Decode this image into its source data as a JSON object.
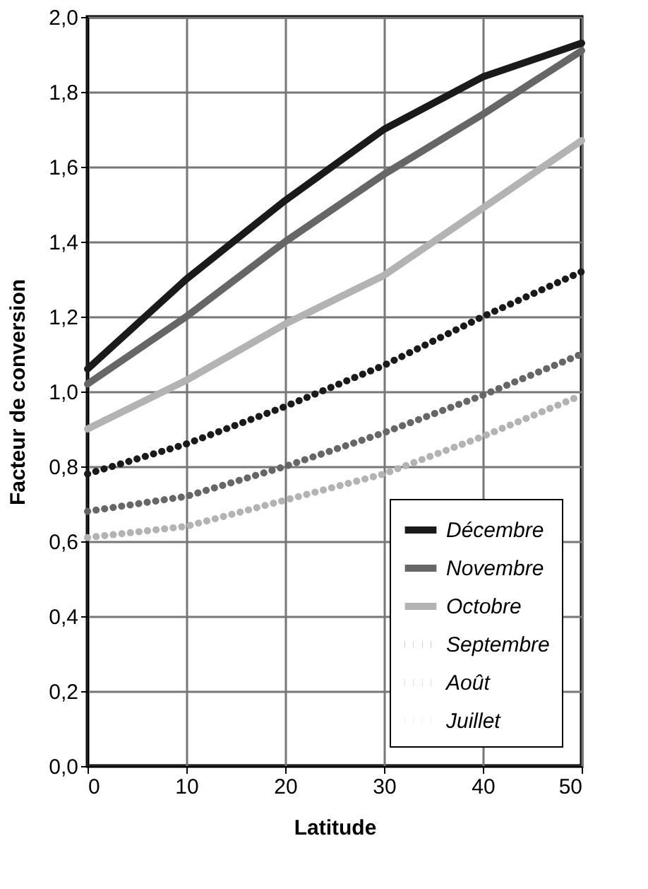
{
  "chart_data": {
    "type": "line",
    "xlabel": "Latitude",
    "ylabel": "Facteur de conversion",
    "x": [
      0,
      10,
      20,
      30,
      40,
      50
    ],
    "xlim": [
      0,
      50
    ],
    "xticks": [
      0,
      10,
      20,
      30,
      40,
      50
    ],
    "ylim": [
      0,
      2
    ],
    "yticks": [
      {
        "value": 0,
        "label": "0,0"
      },
      {
        "value": 0.2,
        "label": "0,2"
      },
      {
        "value": 0.4,
        "label": "0,4"
      },
      {
        "value": 0.6,
        "label": "0,6"
      },
      {
        "value": 0.8,
        "label": "0,8"
      },
      {
        "value": 1.0,
        "label": "1,0"
      },
      {
        "value": 1.2,
        "label": "1,2"
      },
      {
        "value": 1.4,
        "label": "1,4"
      },
      {
        "value": 1.6,
        "label": "1,6"
      },
      {
        "value": 1.8,
        "label": "1,8"
      },
      {
        "value": 2.0,
        "label": "2,0"
      }
    ],
    "grid": true,
    "legend": "bottom right",
    "series": [
      {
        "name": "Décembre",
        "color": "#1a1a1a",
        "line_style": "solid",
        "values": [
          1.06,
          1.3,
          1.51,
          1.7,
          1.84,
          1.93
        ]
      },
      {
        "name": "Novembre",
        "color": "#666666",
        "line_style": "solid",
        "values": [
          1.02,
          1.2,
          1.4,
          1.58,
          1.74,
          1.91
        ]
      },
      {
        "name": "Octobre",
        "color": "#b3b3b3",
        "line_style": "solid",
        "values": [
          0.9,
          1.03,
          1.18,
          1.31,
          1.49,
          1.67
        ]
      },
      {
        "name": "Septembre",
        "color": "#1a1a1a",
        "line_style": "dotted",
        "values": [
          0.78,
          0.86,
          0.96,
          1.07,
          1.2,
          1.32
        ]
      },
      {
        "name": "Août",
        "color": "#666666",
        "line_style": "dotted",
        "values": [
          0.68,
          0.72,
          0.8,
          0.89,
          0.99,
          1.1
        ]
      },
      {
        "name": "Juillet",
        "color": "#b3b3b3",
        "line_style": "dotted",
        "values": [
          0.61,
          0.64,
          0.71,
          0.78,
          0.88,
          0.99
        ]
      }
    ]
  }
}
